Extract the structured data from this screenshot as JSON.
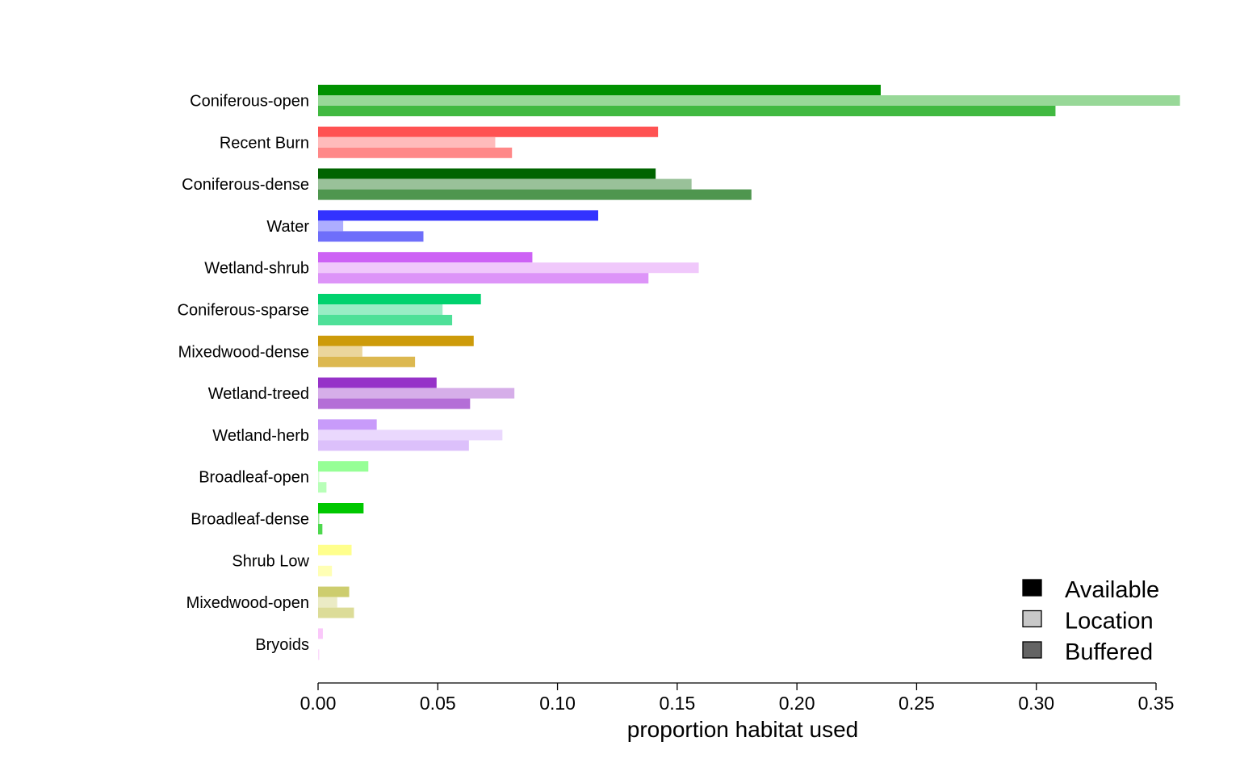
{
  "chart_data": {
    "type": "bar",
    "orientation": "horizontal",
    "xlabel": "proportion habitat used",
    "ylabel": "",
    "xlim": [
      0,
      0.35
    ],
    "x_ticks": [
      "0.00",
      "0.05",
      "0.10",
      "0.15",
      "0.20",
      "0.25",
      "0.30",
      "0.35"
    ],
    "grid": false,
    "legend_position": "bottom-right",
    "categories": [
      "Coniferous-open",
      "Recent Burn",
      "Coniferous-dense",
      "Water",
      "Wetland-shrub",
      "Coniferous-sparse",
      "Mixedwood-dense",
      "Wetland-treed",
      "Wetland-herb",
      "Broadleaf-open",
      "Broadleaf-dense",
      "Shrub Low",
      "Mixedwood-open",
      "Bryoids"
    ],
    "series": [
      {
        "name": "Available",
        "values": [
          0.235,
          0.142,
          0.141,
          0.117,
          0.0895,
          0.068,
          0.065,
          0.0495,
          0.0245,
          0.021,
          0.019,
          0.014,
          0.013,
          0.002
        ]
      },
      {
        "name": "Location",
        "values": [
          0.36,
          0.074,
          0.156,
          0.0105,
          0.159,
          0.052,
          0.0185,
          0.082,
          0.077,
          0.0005,
          0.0005,
          0.0,
          0.008,
          0.0
        ]
      },
      {
        "name": "Buffered",
        "values": [
          0.308,
          0.081,
          0.181,
          0.044,
          0.138,
          0.056,
          0.0405,
          0.0635,
          0.063,
          0.0035,
          0.0018,
          0.0058,
          0.015,
          0.0005
        ]
      }
    ],
    "colors": [
      [
        "#009100",
        "#98d898",
        "#41b941"
      ],
      [
        "#ff5252",
        "#ffbbbb",
        "#ff8888"
      ],
      [
        "#006400",
        "#99c199",
        "#4f964f"
      ],
      [
        "#3232ff",
        "#adadff",
        "#6e6efa"
      ],
      [
        "#cd62f5",
        "#f0c8fb",
        "#dd94f8"
      ],
      [
        "#00d26e",
        "#99edc5",
        "#4ee098"
      ],
      [
        "#cd9b0a",
        "#ebd69c",
        "#dcb850"
      ],
      [
        "#9632c8",
        "#d6aee9",
        "#b46ed7"
      ],
      [
        "#c89bfa",
        "#ead8fd",
        "#dcc0fb"
      ],
      [
        "#96ff96",
        "#d5ffd5",
        "#b8ffb8"
      ],
      [
        "#00c800",
        "#99e999",
        "#4dd84d"
      ],
      [
        "#ffff8c",
        "#ffffd1",
        "#ffffb5"
      ],
      [
        "#cdcd6e",
        "#ebebc5",
        "#dcdc98"
      ],
      [
        "#fac8fa",
        "#fde9fd",
        "#fbdafb"
      ]
    ],
    "legend_swatch_colors": [
      "#000000",
      "#c8c8c8",
      "#646464"
    ]
  }
}
